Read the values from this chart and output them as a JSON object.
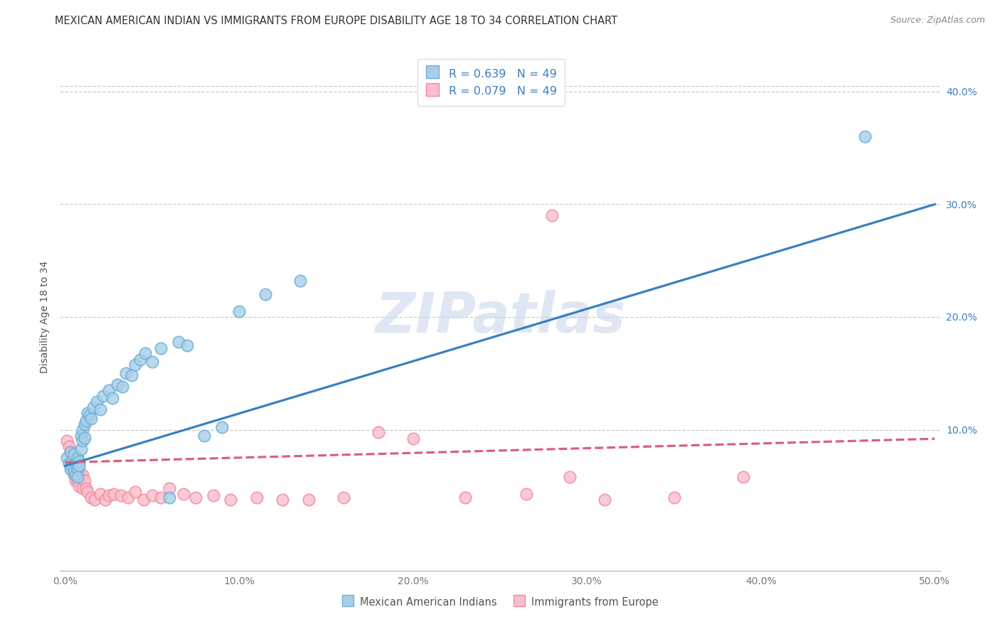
{
  "title": "MEXICAN AMERICAN INDIAN VS IMMIGRANTS FROM EUROPE DISABILITY AGE 18 TO 34 CORRELATION CHART",
  "source": "Source: ZipAtlas.com",
  "ylabel": "Disability Age 18 to 34",
  "xlim": [
    -0.003,
    0.503
  ],
  "ylim": [
    -0.025,
    0.425
  ],
  "blue_fill": "#a8cfe8",
  "blue_edge": "#6baed6",
  "pink_fill": "#f9bece",
  "pink_edge": "#f08aa0",
  "blue_line_color": "#3a7fc1",
  "pink_line_color": "#d9607a",
  "legend_text_color": "#3a7fc1",
  "title_color": "#333333",
  "source_color": "#888888",
  "grid_color": "#cccccc",
  "background_color": "#ffffff",
  "ytick_color": "#3a7fc1",
  "xtick_color": "#777777",
  "ylabel_color": "#555555",
  "legend_label1": "Mexican American Indians",
  "legend_label2": "Immigrants from Europe",
  "watermark": "ZIPatlas",
  "blue_x": [
    0.001,
    0.002,
    0.003,
    0.003,
    0.004,
    0.004,
    0.005,
    0.005,
    0.006,
    0.006,
    0.007,
    0.007,
    0.007,
    0.008,
    0.008,
    0.009,
    0.009,
    0.01,
    0.01,
    0.011,
    0.011,
    0.012,
    0.013,
    0.014,
    0.015,
    0.016,
    0.018,
    0.02,
    0.022,
    0.025,
    0.027,
    0.03,
    0.033,
    0.035,
    0.038,
    0.04,
    0.043,
    0.046,
    0.05,
    0.055,
    0.06,
    0.065,
    0.07,
    0.08,
    0.09,
    0.1,
    0.115,
    0.135,
    0.46
  ],
  "blue_y": [
    0.075,
    0.07,
    0.065,
    0.08,
    0.072,
    0.068,
    0.078,
    0.063,
    0.07,
    0.06,
    0.075,
    0.065,
    0.058,
    0.072,
    0.068,
    0.095,
    0.083,
    0.1,
    0.09,
    0.105,
    0.093,
    0.108,
    0.115,
    0.113,
    0.11,
    0.12,
    0.125,
    0.118,
    0.13,
    0.135,
    0.128,
    0.14,
    0.138,
    0.15,
    0.148,
    0.158,
    0.162,
    0.168,
    0.16,
    0.172,
    0.04,
    0.178,
    0.175,
    0.095,
    0.102,
    0.205,
    0.22,
    0.232,
    0.36
  ],
  "pink_x": [
    0.001,
    0.002,
    0.003,
    0.004,
    0.004,
    0.005,
    0.005,
    0.006,
    0.006,
    0.007,
    0.007,
    0.008,
    0.008,
    0.009,
    0.01,
    0.01,
    0.011,
    0.012,
    0.013,
    0.015,
    0.017,
    0.02,
    0.023,
    0.025,
    0.028,
    0.032,
    0.036,
    0.04,
    0.045,
    0.05,
    0.055,
    0.06,
    0.068,
    0.075,
    0.085,
    0.095,
    0.11,
    0.125,
    0.14,
    0.16,
    0.18,
    0.2,
    0.23,
    0.265,
    0.29,
    0.31,
    0.35,
    0.39,
    0.28
  ],
  "pink_y": [
    0.09,
    0.085,
    0.08,
    0.078,
    0.065,
    0.075,
    0.06,
    0.07,
    0.055,
    0.068,
    0.055,
    0.063,
    0.05,
    0.058,
    0.06,
    0.048,
    0.055,
    0.048,
    0.045,
    0.04,
    0.038,
    0.043,
    0.038,
    0.042,
    0.043,
    0.042,
    0.04,
    0.045,
    0.038,
    0.042,
    0.04,
    0.048,
    0.043,
    0.04,
    0.042,
    0.038,
    0.04,
    0.038,
    0.038,
    0.04,
    0.098,
    0.092,
    0.04,
    0.043,
    0.058,
    0.038,
    0.04,
    0.058,
    0.29
  ],
  "blue_line_x0": 0.0,
  "blue_line_y0": 0.068,
  "blue_line_x1": 0.5,
  "blue_line_y1": 0.3,
  "pink_line_x0": 0.0,
  "pink_line_y0": 0.071,
  "pink_line_x1": 0.5,
  "pink_line_y1": 0.092
}
